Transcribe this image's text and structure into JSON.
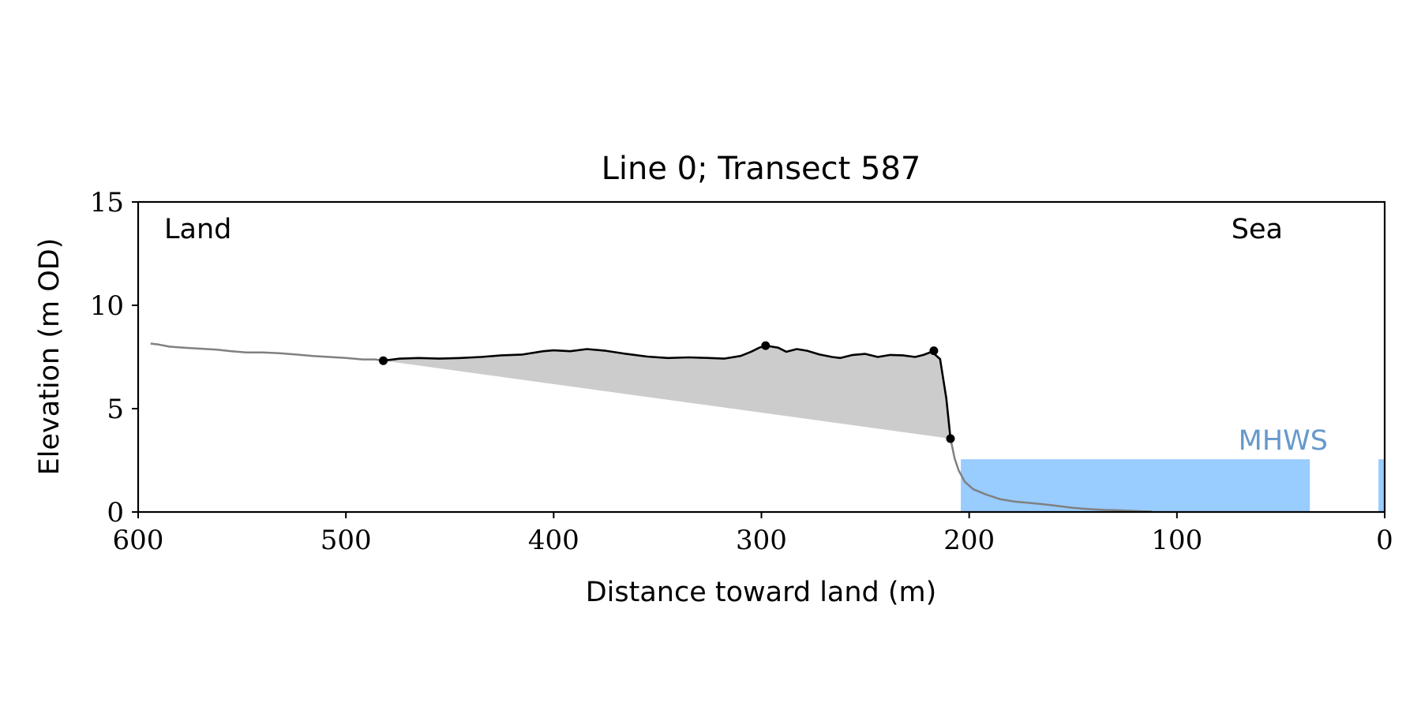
{
  "chart_data": {
    "type": "line",
    "title": "Line 0; Transect 587",
    "xlabel": "Distance toward land (m)",
    "ylabel": "Elevation (m OD)",
    "xlim": [
      600,
      0
    ],
    "ylim": [
      0,
      15
    ],
    "x_ticks": [
      600,
      500,
      400,
      300,
      200,
      100,
      0
    ],
    "y_ticks": [
      0,
      5,
      10,
      15
    ],
    "grid": false,
    "annotations": {
      "land": "Land",
      "sea": "Sea",
      "mhws": "MHWS"
    },
    "colors": {
      "profile_outer": "#808080",
      "profile_cliff": "#000000",
      "fill": "#cccccc",
      "water": "#99ccff",
      "mhws_label": "#6699cc"
    },
    "mhws_level": 2.55,
    "water_bands": [
      [
        204,
        36
      ],
      [
        3,
        0
      ]
    ],
    "profile_outer_left": [
      [
        594,
        8.15
      ],
      [
        590,
        8.1
      ],
      [
        585,
        8.0
      ],
      [
        578,
        7.95
      ],
      [
        570,
        7.9
      ],
      [
        562,
        7.85
      ],
      [
        555,
        7.78
      ],
      [
        548,
        7.72
      ],
      [
        540,
        7.72
      ],
      [
        532,
        7.68
      ],
      [
        524,
        7.62
      ],
      [
        516,
        7.55
      ],
      [
        508,
        7.5
      ],
      [
        500,
        7.45
      ],
      [
        492,
        7.38
      ],
      [
        486,
        7.38
      ],
      [
        482,
        7.32
      ]
    ],
    "profile_cliff": [
      [
        482,
        7.32
      ],
      [
        474,
        7.42
      ],
      [
        465,
        7.45
      ],
      [
        455,
        7.42
      ],
      [
        445,
        7.45
      ],
      [
        435,
        7.5
      ],
      [
        425,
        7.58
      ],
      [
        415,
        7.62
      ],
      [
        405,
        7.78
      ],
      [
        400,
        7.82
      ],
      [
        392,
        7.78
      ],
      [
        384,
        7.88
      ],
      [
        375,
        7.8
      ],
      [
        365,
        7.65
      ],
      [
        355,
        7.52
      ],
      [
        345,
        7.45
      ],
      [
        335,
        7.48
      ],
      [
        325,
        7.45
      ],
      [
        318,
        7.42
      ],
      [
        310,
        7.55
      ],
      [
        305,
        7.75
      ],
      [
        301,
        7.95
      ],
      [
        298,
        8.05
      ],
      [
        292,
        7.95
      ],
      [
        288,
        7.75
      ],
      [
        283,
        7.88
      ],
      [
        278,
        7.8
      ],
      [
        272,
        7.62
      ],
      [
        266,
        7.5
      ],
      [
        262,
        7.45
      ],
      [
        256,
        7.6
      ],
      [
        250,
        7.65
      ],
      [
        244,
        7.5
      ],
      [
        238,
        7.6
      ],
      [
        232,
        7.58
      ],
      [
        226,
        7.5
      ],
      [
        222,
        7.6
      ],
      [
        218,
        7.75
      ],
      [
        214,
        7.4
      ],
      [
        211,
        5.5
      ],
      [
        209,
        3.55
      ]
    ],
    "profile_outer_right": [
      [
        209,
        3.55
      ],
      [
        207,
        2.6
      ],
      [
        205,
        2.0
      ],
      [
        202,
        1.45
      ],
      [
        198,
        1.1
      ],
      [
        192,
        0.85
      ],
      [
        185,
        0.62
      ],
      [
        178,
        0.5
      ],
      [
        172,
        0.45
      ],
      [
        165,
        0.38
      ],
      [
        158,
        0.3
      ],
      [
        150,
        0.2
      ],
      [
        143,
        0.14
      ],
      [
        135,
        0.1
      ],
      [
        128,
        0.08
      ],
      [
        120,
        0.05
      ],
      [
        112,
        0.02
      ]
    ],
    "key_points": [
      [
        482,
        7.32
      ],
      [
        298,
        8.05
      ],
      [
        217,
        7.8
      ],
      [
        209,
        3.55
      ]
    ],
    "fill_baseline": [
      [
        482,
        7.32
      ],
      [
        209,
        3.55
      ]
    ]
  }
}
